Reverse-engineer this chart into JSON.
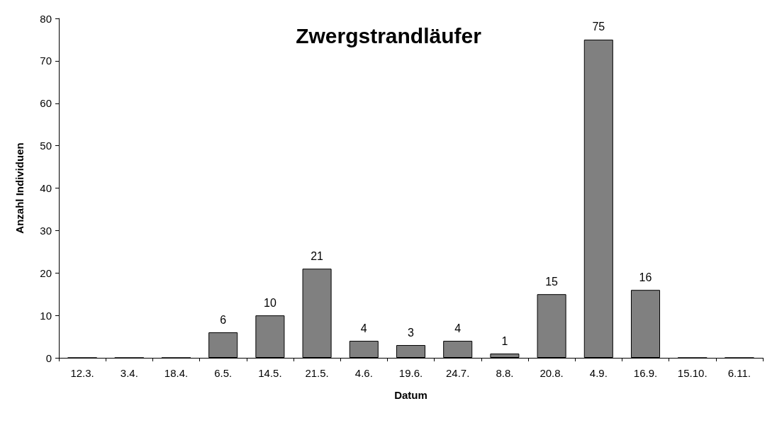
{
  "chart_data": {
    "type": "bar",
    "title": "Zwergstrandläufer",
    "xlabel": "Datum",
    "ylabel": "Anzahl Individuen",
    "categories": [
      "12.3.",
      "3.4.",
      "18.4.",
      "6.5.",
      "14.5.",
      "21.5.",
      "4.6.",
      "19.6.",
      "24.7.",
      "8.8.",
      "20.8.",
      "4.9.",
      "16.9.",
      "15.10.",
      "6.11."
    ],
    "values": [
      0,
      0,
      0,
      6,
      10,
      21,
      4,
      3,
      4,
      1,
      15,
      75,
      16,
      0,
      0
    ],
    "value_labels": [
      null,
      null,
      null,
      "6",
      "10",
      "21",
      "4",
      "3",
      "4",
      "1",
      "15",
      "75",
      "16",
      null,
      null
    ],
    "color": "#808080",
    "ylim": [
      0,
      80
    ],
    "yticks": [
      0,
      10,
      20,
      30,
      40,
      50,
      60,
      70,
      80
    ],
    "grid": false
  }
}
